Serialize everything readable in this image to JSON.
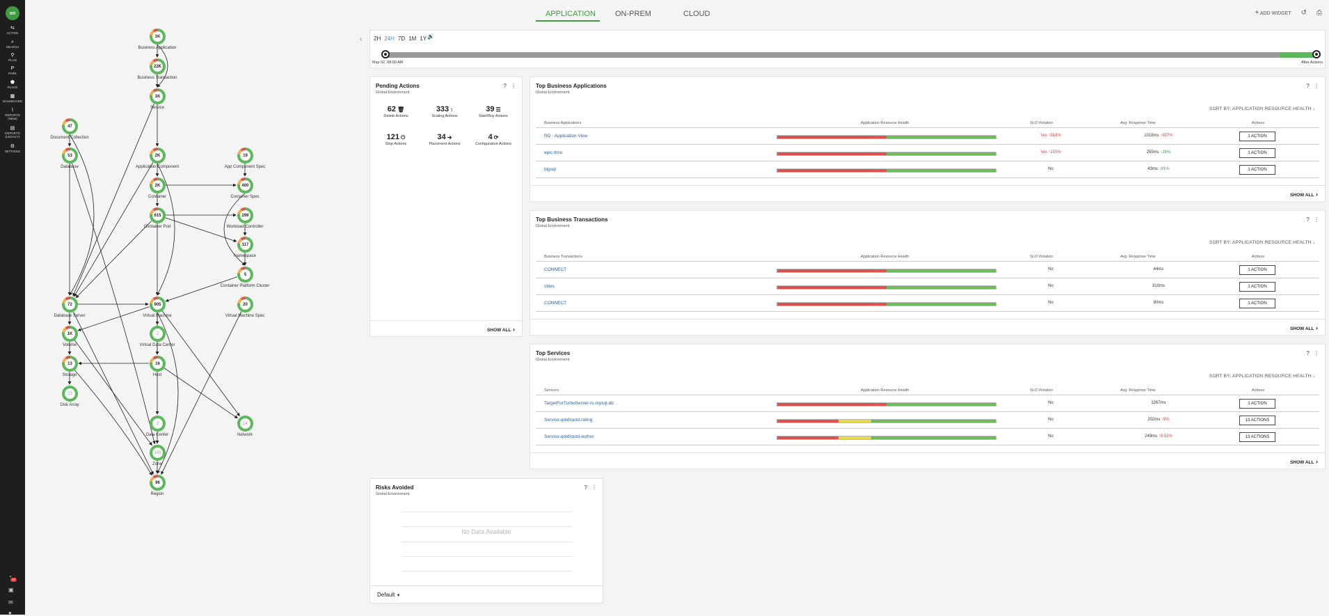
{
  "sidebar": {
    "logo": "on",
    "items": [
      {
        "label": "ACTION",
        "icon": "action-icon",
        "glyph": "⇆"
      },
      {
        "label": "SEARCH",
        "icon": "search-icon",
        "glyph": "⌕"
      },
      {
        "label": "PLAN",
        "icon": "plan-icon",
        "glyph": "⚲"
      },
      {
        "label": "PARK",
        "icon": "park-icon",
        "glyph": "P"
      },
      {
        "label": "PLACE",
        "icon": "place-icon",
        "glyph": "⬟"
      },
      {
        "label": "DASHBOARD",
        "icon": "dashboard-icon",
        "glyph": "▦"
      },
      {
        "label": "REPORTS (NEW)",
        "icon": "reports-icon",
        "glyph": "⌇"
      },
      {
        "label": "REPORTS (LEGACY)",
        "icon": "reports-legacy-icon",
        "glyph": "▤"
      },
      {
        "label": "SETTINGS",
        "icon": "settings-icon",
        "glyph": "⚙"
      }
    ],
    "notification_count": "10"
  },
  "header": {
    "tabs": [
      "APPLICATION",
      "ON-PREM",
      "CLOUD"
    ],
    "active_tab": "APPLICATION",
    "add_widget": "ADD WIDGET"
  },
  "supply_chain": {
    "nodes": [
      {
        "id": "business-application",
        "value": "1K",
        "label": "Business Application"
      },
      {
        "id": "business-transaction",
        "value": "22K",
        "label": "Business Transaction"
      },
      {
        "id": "service",
        "value": "1K",
        "label": "Service"
      },
      {
        "id": "document-collection",
        "value": "47",
        "label": "Document Collection"
      },
      {
        "id": "database",
        "value": "53",
        "label": "Database"
      },
      {
        "id": "application-component",
        "value": "2K",
        "label": "Application Component"
      },
      {
        "id": "app-component-spec",
        "value": "19",
        "label": "App Component Spec"
      },
      {
        "id": "container",
        "value": "2K",
        "label": "Container"
      },
      {
        "id": "container-spec",
        "value": "400",
        "label": "Container Spec"
      },
      {
        "id": "container-pod",
        "value": "615",
        "label": "Container Pod"
      },
      {
        "id": "workload-controller",
        "value": "299",
        "label": "Workload Controller"
      },
      {
        "id": "namespace",
        "value": "117",
        "label": "Namespace"
      },
      {
        "id": "container-platform-cluster",
        "value": "5",
        "label": "Container Platform Cluster"
      },
      {
        "id": "database-server",
        "value": "72",
        "label": "Database Server"
      },
      {
        "id": "virtual-machine",
        "value": "905",
        "label": "Virtual Machine"
      },
      {
        "id": "virtual-machine-spec",
        "value": "20",
        "label": "Virtual Machine Spec"
      },
      {
        "id": "volume",
        "value": "1K",
        "label": "Volume"
      },
      {
        "id": "virtual-data-center",
        "value": "2",
        "label": "Virtual Data Center"
      },
      {
        "id": "storage",
        "value": "13",
        "label": "Storage"
      },
      {
        "id": "host",
        "value": "16",
        "label": "Host"
      },
      {
        "id": "disk-array",
        "value": "13",
        "label": "Disk Array"
      },
      {
        "id": "data-center",
        "value": "2",
        "label": "Data Center"
      },
      {
        "id": "network",
        "value": "14",
        "label": "Network"
      },
      {
        "id": "zone",
        "value": "193",
        "label": "Zone"
      },
      {
        "id": "region",
        "value": "96",
        "label": "Region"
      }
    ]
  },
  "timeline": {
    "ranges": [
      "2H",
      "24H",
      "7D",
      "1M",
      "1Y"
    ],
    "selected": "24H",
    "start_label": "May 02, 08:00 AM",
    "end_label": "After Actions",
    "after_actions_share": 0.04
  },
  "pending_actions": {
    "title": "Pending Actions",
    "scope": "Global Environment",
    "items": [
      {
        "value": "62",
        "label": "Delete Actions",
        "icon": "trash-icon",
        "glyph": "🗑"
      },
      {
        "value": "333",
        "label": "Scaling Actions",
        "icon": "scale-icon",
        "glyph": "↕"
      },
      {
        "value": "39",
        "label": "Start/Buy Actions",
        "icon": "list-icon",
        "glyph": "☰"
      },
      {
        "value": "121",
        "label": "Stop Actions",
        "icon": "power-icon",
        "glyph": "⏻"
      },
      {
        "value": "34",
        "label": "Placement Actions",
        "icon": "arrow-right-icon",
        "glyph": "➔"
      },
      {
        "value": "4",
        "label": "Configuration Actions",
        "icon": "refresh-icon",
        "glyph": "⟳"
      }
    ],
    "show_all": "SHOW ALL"
  },
  "top_business_applications": {
    "title": "Top Business Applications",
    "scope": "Global Environment",
    "sort_by": "SORT BY: APPLICATION RESOURCE HEALTH",
    "columns": [
      "Business Applications",
      "Application Resource Health",
      "SLO Violation",
      "Avg. Response Time",
      "Actions"
    ],
    "rows": [
      {
        "name": "RD - Application View",
        "health": [
          0.5,
          0,
          0.5
        ],
        "slo": "Yes",
        "slo_change": "918%",
        "response": "1018ms",
        "resp_change": "657%",
        "resp_dir": "up",
        "action": "1 ACTION"
      },
      {
        "name": "epic-timo",
        "health": [
          0.5,
          0,
          0.5
        ],
        "slo": "Yes",
        "slo_change": "155%",
        "response": "255ms",
        "resp_change": "16%",
        "resp_dir": "down",
        "action": "1 ACTION"
      },
      {
        "name": "bigsql",
        "health": [
          0.5,
          0,
          0.5
        ],
        "slo": "No",
        "slo_change": "",
        "response": "43ms",
        "resp_change": "91%",
        "resp_dir": "down",
        "action": "1 ACTION"
      }
    ],
    "show_all": "SHOW ALL"
  },
  "top_business_transactions": {
    "title": "Top Business Transactions",
    "scope": "Global Environment",
    "sort_by": "SORT BY: APPLICATION RESOURCE HEALTH",
    "columns": [
      "Business Transactions",
      "Application Resource Health",
      "SLO Violation",
      "Avg. Response Time",
      "Actions"
    ],
    "rows": [
      {
        "name": "CONNECT",
        "health": [
          0.5,
          0,
          0.5
        ],
        "slo": "No",
        "response": "44ms",
        "action": "1 ACTION"
      },
      {
        "name": "cities",
        "health": [
          0.5,
          0,
          0.5
        ],
        "slo": "No",
        "response": "310ms",
        "action": "1 ACTION"
      },
      {
        "name": "CONNECT",
        "health": [
          0.5,
          0,
          0.5
        ],
        "slo": "No",
        "response": "90ms",
        "action": "1 ACTION"
      }
    ],
    "show_all": "SHOW ALL"
  },
  "top_services": {
    "title": "Top Services",
    "scope": "Global Environment",
    "sort_by": "SORT BY: APPLICATION RESOURCE HEALTH",
    "columns": [
      "Services",
      "Application Resource Health",
      "SLO Violation",
      "Avg. Response Time",
      "Actions"
    ],
    "rows": [
      {
        "name": "TargetForTurboServer-rs-mysql-db",
        "health": [
          0.5,
          0,
          0.5
        ],
        "slo": "No",
        "response": "1267ms",
        "resp_change": "",
        "action": "1 ACTION"
      },
      {
        "name": "Service-qotd/qotd-rating",
        "health": [
          0.28,
          0.15,
          0.57
        ],
        "slo": "No",
        "response": "202ms",
        "resp_change": "9%",
        "resp_dir": "up",
        "action": "13 ACTIONS"
      },
      {
        "name": "Service-qotd/qotd-author",
        "health": [
          0.28,
          0.15,
          0.57
        ],
        "slo": "No",
        "response": "249ms",
        "resp_change": "0.52%",
        "resp_dir": "up",
        "action": "13 ACTIONS"
      }
    ],
    "show_all": "SHOW ALL"
  },
  "risks_avoided": {
    "title": "Risks Avoided",
    "scope": "Global Environment",
    "empty_text": "No Data Available",
    "dropdown": "Default"
  },
  "colors": {
    "accent": "#3f9b3f",
    "critical": "#e05252",
    "minor": "#e8d84a",
    "normal": "#6cba5a",
    "link": "#2962a8"
  }
}
